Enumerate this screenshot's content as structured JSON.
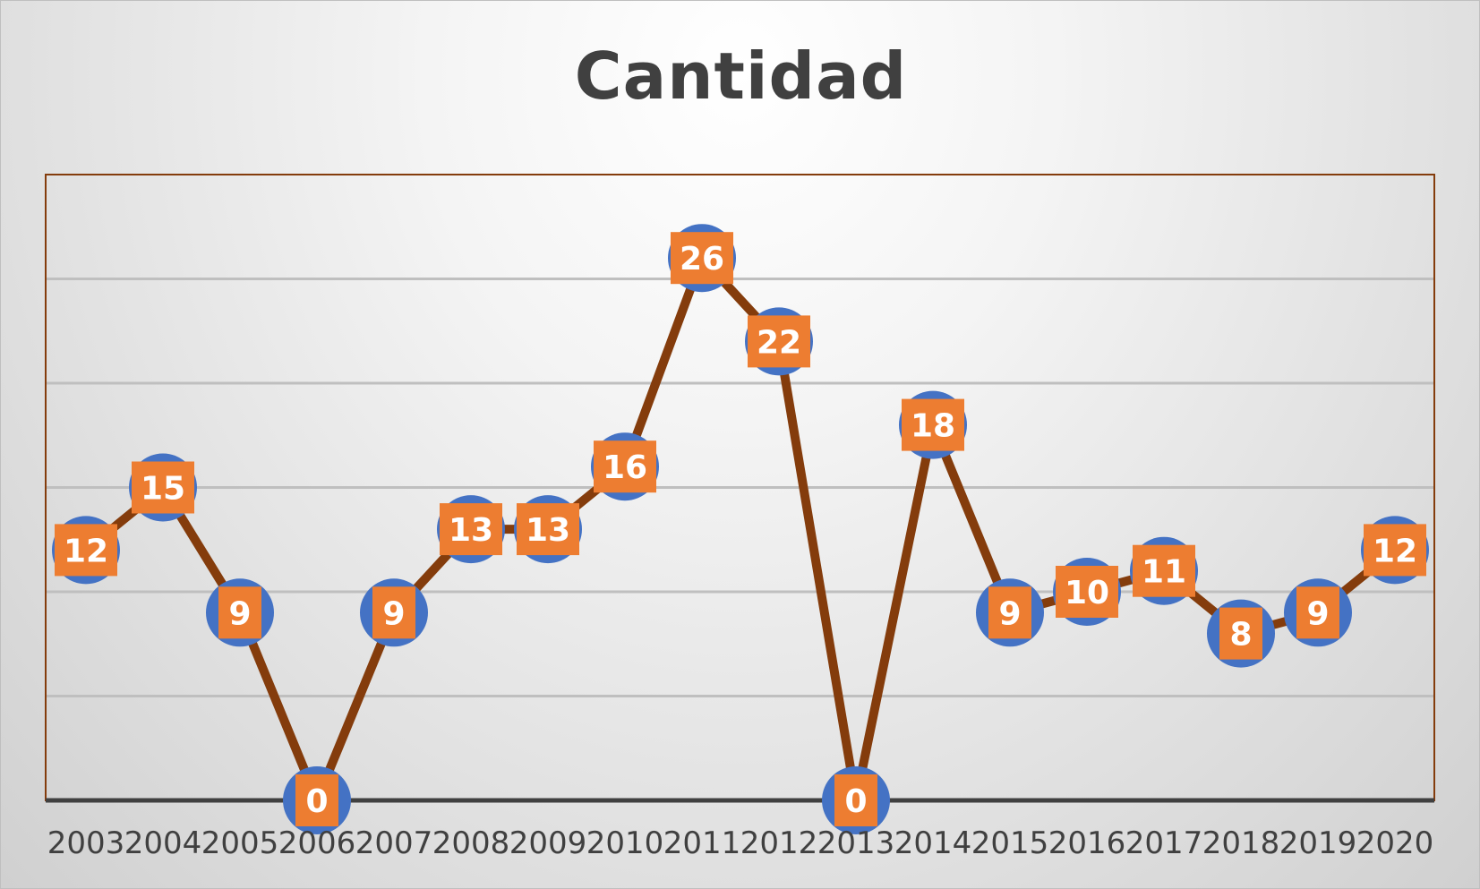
{
  "chart_data": {
    "type": "line",
    "title": "Cantidad",
    "xlabel": "",
    "ylabel": "",
    "categories": [
      "2003",
      "2004",
      "2005",
      "2006",
      "2007",
      "2008",
      "2009",
      "2010",
      "2011",
      "2012",
      "2013",
      "2014",
      "2015",
      "2016",
      "2017",
      "2018",
      "2019",
      "2020"
    ],
    "series": [
      {
        "values": [
          12,
          15,
          9,
          0,
          9,
          13,
          13,
          16,
          26,
          22,
          0,
          18,
          9,
          10,
          11,
          8,
          9,
          12
        ]
      }
    ],
    "ylim": [
      0,
      30
    ],
    "y_gridline_step": 5,
    "grid": true,
    "legend": "none",
    "data_labels": true,
    "colors": {
      "line": "#843c0c",
      "marker": "#4472c4",
      "label_box": "#ed7d31",
      "label_text": "#ffffff",
      "plot_border": "#843c0c",
      "gridline": "#bfbfbf",
      "axis": "#404040",
      "text": "#404040"
    }
  }
}
